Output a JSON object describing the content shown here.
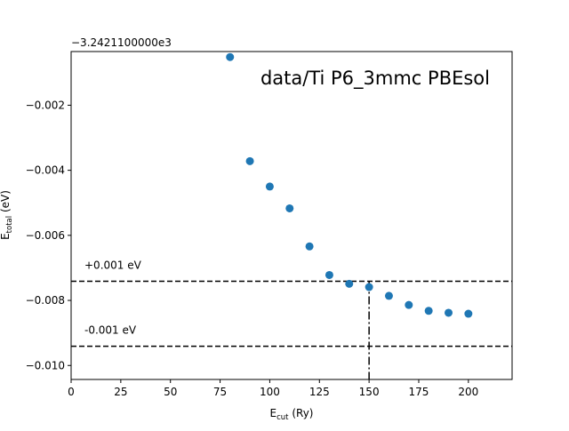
{
  "chart_data": {
    "type": "scatter",
    "title": "data/Ti P6_3mmc PBEsol",
    "xlabel": {
      "main": "E",
      "sub": "cut",
      "unit": " (Ry)"
    },
    "ylabel": {
      "main": "E",
      "sub": "total",
      "unit": " (eV)"
    },
    "y_offset_label": "−3.2421100000e3",
    "xlim": [
      0,
      222
    ],
    "ylim": [
      -0.01043,
      -0.00035
    ],
    "xticks": [
      0,
      25,
      50,
      75,
      100,
      125,
      150,
      175,
      200
    ],
    "yticks": [
      -0.01,
      -0.008,
      -0.006,
      -0.004,
      -0.002
    ],
    "ytick_labels": [
      "−0.010",
      "−0.008",
      "−0.006",
      "−0.004",
      "−0.002"
    ],
    "marker_color": "#1f77b4",
    "x": [
      80,
      90,
      100,
      110,
      120,
      130,
      140,
      150,
      160,
      170,
      180,
      190,
      200
    ],
    "y": [
      -0.00052,
      -0.00372,
      -0.0045,
      -0.00517,
      -0.00634,
      -0.00722,
      -0.00749,
      -0.00759,
      -0.00786,
      -0.00814,
      -0.00832,
      -0.00838,
      -0.00841
    ],
    "hlines": [
      {
        "y": -0.00741,
        "label": "+0.001 eV",
        "style": "dashed"
      },
      {
        "y": -0.00941,
        "label": "-0.001 eV",
        "style": "dashed"
      }
    ],
    "vline": {
      "x": 150,
      "y_top": -0.00741,
      "style": "dashdot"
    },
    "grid": false,
    "legend": "none"
  }
}
